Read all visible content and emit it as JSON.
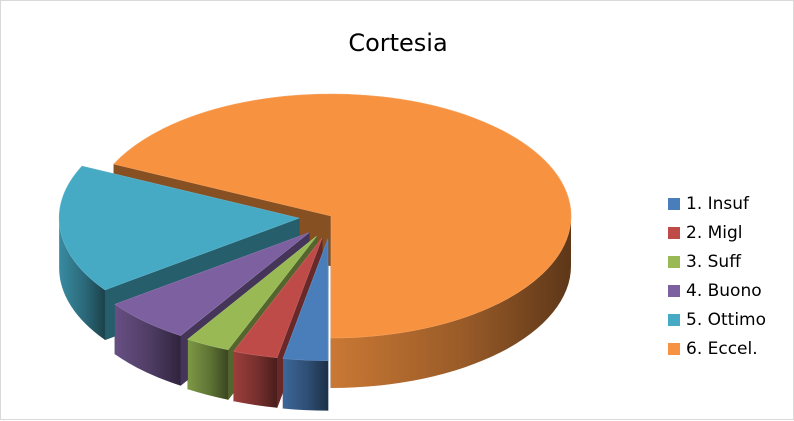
{
  "chart_data": {
    "type": "pie",
    "title": "Cortesia",
    "exploded": true,
    "three_d": true,
    "legend_position": "right",
    "categories": [
      "1. Insuf",
      "2. Migl",
      "3. Suff",
      "4. Buono",
      "5. Ottimo",
      "6. Eccel."
    ],
    "values": [
      3,
      3,
      3,
      6,
      17,
      68
    ],
    "colors": [
      "#4a7ebb",
      "#be4b48",
      "#98b954",
      "#7d60a0",
      "#46aac4",
      "#f69240"
    ]
  }
}
